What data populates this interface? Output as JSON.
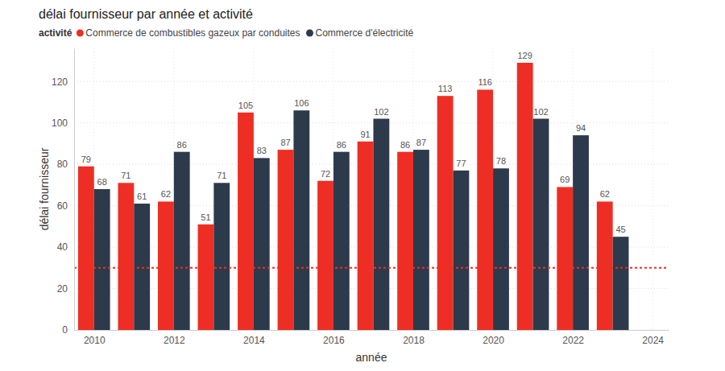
{
  "chart_data": {
    "type": "bar",
    "title": "délai fournisseur par année et activité",
    "legend_title": "activité",
    "x_label": "année",
    "y_label": "délai fournisseur",
    "x": [
      2010,
      2011,
      2012,
      2013,
      2014,
      2015,
      2016,
      2017,
      2018,
      2019,
      2020,
      2021,
      2022,
      2023
    ],
    "series": [
      {
        "name": "Commerce de combustibles gazeux par conduites",
        "color": "#ee2e24",
        "values": [
          79,
          71,
          62,
          51,
          105,
          87,
          72,
          91,
          86,
          113,
          116,
          129,
          69,
          62
        ]
      },
      {
        "name": "Commerce d'électricité",
        "color": "#2c3a4b",
        "values": [
          68,
          61,
          86,
          71,
          83,
          106,
          86,
          102,
          87,
          77,
          78,
          102,
          94,
          45
        ]
      }
    ],
    "xlim": [
      2009.5,
      2024.4
    ],
    "xticks": [
      2010,
      2012,
      2014,
      2016,
      2018,
      2020,
      2022,
      2024
    ],
    "ylim": [
      0,
      136
    ],
    "yticks": [
      0,
      20,
      40,
      60,
      80,
      100,
      120
    ],
    "reference_line": {
      "value": 30,
      "color": "#ee2e24",
      "line_style": "dashed"
    },
    "grid": true,
    "data_labels": true,
    "legend": "top-left"
  }
}
